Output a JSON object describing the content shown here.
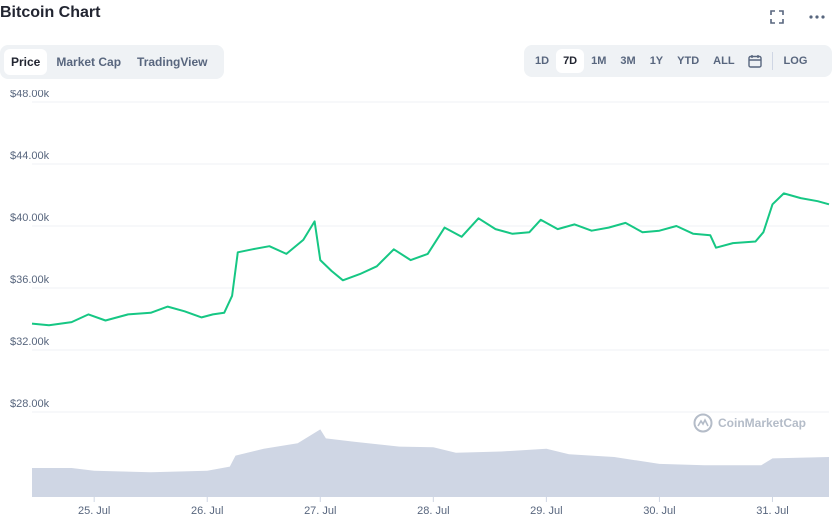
{
  "header": {
    "title": "Bitcoin Chart"
  },
  "tabs": [
    {
      "label": "Price",
      "active": true
    },
    {
      "label": "Market Cap",
      "active": false
    },
    {
      "label": "TradingView",
      "active": false
    }
  ],
  "ranges": [
    {
      "label": "1D",
      "active": false
    },
    {
      "label": "7D",
      "active": true
    },
    {
      "label": "1M",
      "active": false
    },
    {
      "label": "3M",
      "active": false
    },
    {
      "label": "1Y",
      "active": false
    },
    {
      "label": "YTD",
      "active": false
    },
    {
      "label": "ALL",
      "active": false
    }
  ],
  "log_label": "LOG",
  "icons": {
    "fullscreen": "fullscreen-icon",
    "more": "more-dots-icon",
    "calendar": "calendar-icon"
  },
  "watermark": "CoinMarketCap",
  "colors": {
    "line": "#16c784",
    "volume": "#cfd6e4",
    "grid": "#eff2f5",
    "text": "#58667e"
  },
  "chart_data": {
    "type": "line",
    "title": "",
    "xlabel": "",
    "ylabel": "",
    "ylim": [
      24000,
      48000
    ],
    "y_ticks": [
      28000,
      32000,
      36000,
      40000,
      44000,
      48000
    ],
    "y_tick_labels": [
      "$28.00k",
      "$32.00k",
      "$36.00k",
      "$40.00k",
      "$44.00k",
      "$48.00k"
    ],
    "x_tick_labels": [
      "25. Jul",
      "26. Jul",
      "27. Jul",
      "28. Jul",
      "29. Jul",
      "30. Jul",
      "31. Jul"
    ],
    "x_ticks": [
      1,
      2,
      3,
      4,
      5,
      6,
      7
    ],
    "xlim": [
      0.45,
      7.5
    ],
    "series": [
      {
        "values": [
          {
            "x": 0.45,
            "y": 33700
          },
          {
            "x": 0.6,
            "y": 33600
          },
          {
            "x": 0.8,
            "y": 33800
          },
          {
            "x": 0.95,
            "y": 34300
          },
          {
            "x": 1.1,
            "y": 33900
          },
          {
            "x": 1.3,
            "y": 34300
          },
          {
            "x": 1.5,
            "y": 34400
          },
          {
            "x": 1.65,
            "y": 34800
          },
          {
            "x": 1.8,
            "y": 34500
          },
          {
            "x": 1.95,
            "y": 34100
          },
          {
            "x": 2.05,
            "y": 34300
          },
          {
            "x": 2.15,
            "y": 34400
          },
          {
            "x": 2.22,
            "y": 35500
          },
          {
            "x": 2.27,
            "y": 38300
          },
          {
            "x": 2.4,
            "y": 38500
          },
          {
            "x": 2.55,
            "y": 38700
          },
          {
            "x": 2.7,
            "y": 38200
          },
          {
            "x": 2.85,
            "y": 39100
          },
          {
            "x": 2.95,
            "y": 40300
          },
          {
            "x": 3.0,
            "y": 37800
          },
          {
            "x": 3.1,
            "y": 37100
          },
          {
            "x": 3.2,
            "y": 36500
          },
          {
            "x": 3.35,
            "y": 36900
          },
          {
            "x": 3.5,
            "y": 37400
          },
          {
            "x": 3.65,
            "y": 38500
          },
          {
            "x": 3.8,
            "y": 37800
          },
          {
            "x": 3.95,
            "y": 38200
          },
          {
            "x": 4.1,
            "y": 39900
          },
          {
            "x": 4.25,
            "y": 39300
          },
          {
            "x": 4.4,
            "y": 40500
          },
          {
            "x": 4.55,
            "y": 39800
          },
          {
            "x": 4.7,
            "y": 39500
          },
          {
            "x": 4.85,
            "y": 39600
          },
          {
            "x": 4.95,
            "y": 40400
          },
          {
            "x": 5.1,
            "y": 39800
          },
          {
            "x": 5.25,
            "y": 40100
          },
          {
            "x": 5.4,
            "y": 39700
          },
          {
            "x": 5.55,
            "y": 39900
          },
          {
            "x": 5.7,
            "y": 40200
          },
          {
            "x": 5.85,
            "y": 39600
          },
          {
            "x": 6.0,
            "y": 39700
          },
          {
            "x": 6.15,
            "y": 40000
          },
          {
            "x": 6.3,
            "y": 39500
          },
          {
            "x": 6.45,
            "y": 39400
          },
          {
            "x": 6.5,
            "y": 38600
          },
          {
            "x": 6.65,
            "y": 38900
          },
          {
            "x": 6.85,
            "y": 39000
          },
          {
            "x": 6.92,
            "y": 39600
          },
          {
            "x": 7.0,
            "y": 41400
          },
          {
            "x": 7.1,
            "y": 42100
          },
          {
            "x": 7.25,
            "y": 41800
          },
          {
            "x": 7.4,
            "y": 41600
          },
          {
            "x": 7.5,
            "y": 41400
          }
        ]
      }
    ],
    "volume_profile": [
      {
        "x": 0.45,
        "v": 0.42
      },
      {
        "x": 0.8,
        "v": 0.42
      },
      {
        "x": 1.0,
        "v": 0.38
      },
      {
        "x": 1.5,
        "v": 0.36
      },
      {
        "x": 2.0,
        "v": 0.38
      },
      {
        "x": 2.2,
        "v": 0.44
      },
      {
        "x": 2.25,
        "v": 0.6
      },
      {
        "x": 2.5,
        "v": 0.7
      },
      {
        "x": 2.8,
        "v": 0.78
      },
      {
        "x": 3.0,
        "v": 0.98
      },
      {
        "x": 3.05,
        "v": 0.85
      },
      {
        "x": 3.3,
        "v": 0.8
      },
      {
        "x": 3.7,
        "v": 0.73
      },
      {
        "x": 4.0,
        "v": 0.72
      },
      {
        "x": 4.2,
        "v": 0.64
      },
      {
        "x": 4.6,
        "v": 0.66
      },
      {
        "x": 5.0,
        "v": 0.7
      },
      {
        "x": 5.2,
        "v": 0.62
      },
      {
        "x": 5.6,
        "v": 0.58
      },
      {
        "x": 6.0,
        "v": 0.48
      },
      {
        "x": 6.4,
        "v": 0.46
      },
      {
        "x": 6.9,
        "v": 0.46
      },
      {
        "x": 7.0,
        "v": 0.56
      },
      {
        "x": 7.5,
        "v": 0.58
      }
    ]
  }
}
